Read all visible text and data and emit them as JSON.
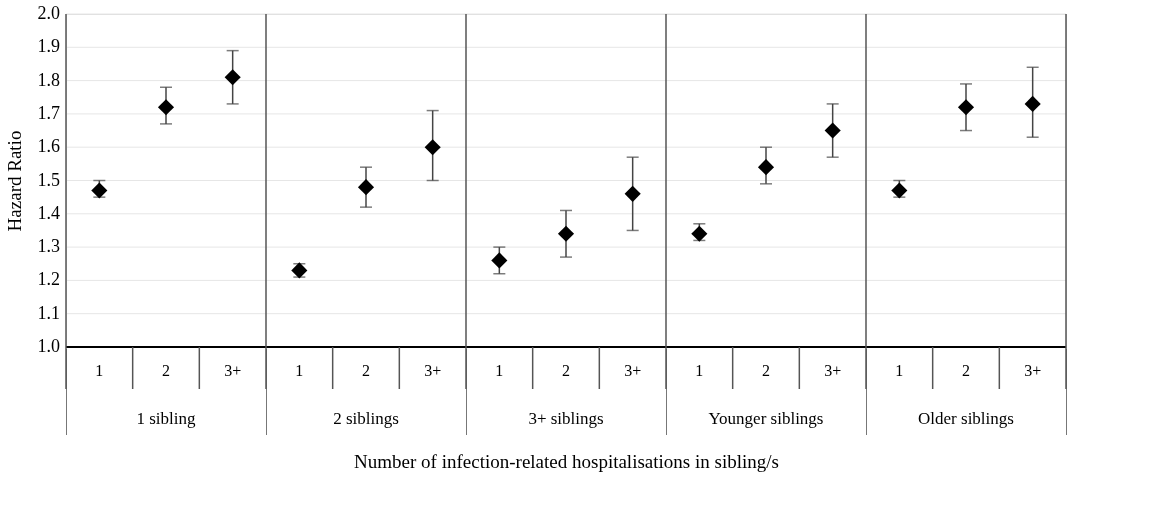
{
  "chart_data": {
    "type": "scatter",
    "xlabel": "Number of infection-related hospitalisations in sibling/s",
    "ylabel": "Hazard Ratio",
    "categories": [
      "1",
      "2",
      "3+",
      "1",
      "2",
      "3+",
      "1",
      "2",
      "3+",
      "1",
      "2",
      "3+",
      "1",
      "2",
      "3+"
    ],
    "series": [
      {
        "color": "#000000",
        "values": [
          1.47,
          1.72,
          1.81,
          1.23,
          1.48,
          1.6,
          1.26,
          1.34,
          1.46,
          1.34,
          1.54,
          1.65,
          1.47,
          1.72,
          1.73
        ],
        "errors": [
          [
            1.45,
            1.5
          ],
          [
            1.67,
            1.78
          ],
          [
            1.73,
            1.89
          ],
          [
            1.21,
            1.25
          ],
          [
            1.42,
            1.54
          ],
          [
            1.5,
            1.71
          ],
          [
            1.22,
            1.3
          ],
          [
            1.27,
            1.41
          ],
          [
            1.35,
            1.57
          ],
          [
            1.32,
            1.37
          ],
          [
            1.49,
            1.6
          ],
          [
            1.57,
            1.73
          ],
          [
            1.45,
            1.5
          ],
          [
            1.65,
            1.79
          ],
          [
            1.63,
            1.84
          ]
        ]
      }
    ],
    "annotations": [
      "1 sibling",
      "2 siblings",
      "3+ siblings",
      "Younger siblings",
      "Older siblings"
    ],
    "ylim": [
      1.0,
      2.0
    ],
    "yticks": [
      {
        "value": 1.0,
        "label": "1.0"
      },
      1.1,
      1.2,
      1.3,
      1.4,
      1.5,
      1.6,
      1.7,
      1.8,
      1.9,
      {
        "value": 2.0,
        "label": "2.0"
      }
    ],
    "grid": "y",
    "legend": false,
    "marker": "diamond"
  }
}
